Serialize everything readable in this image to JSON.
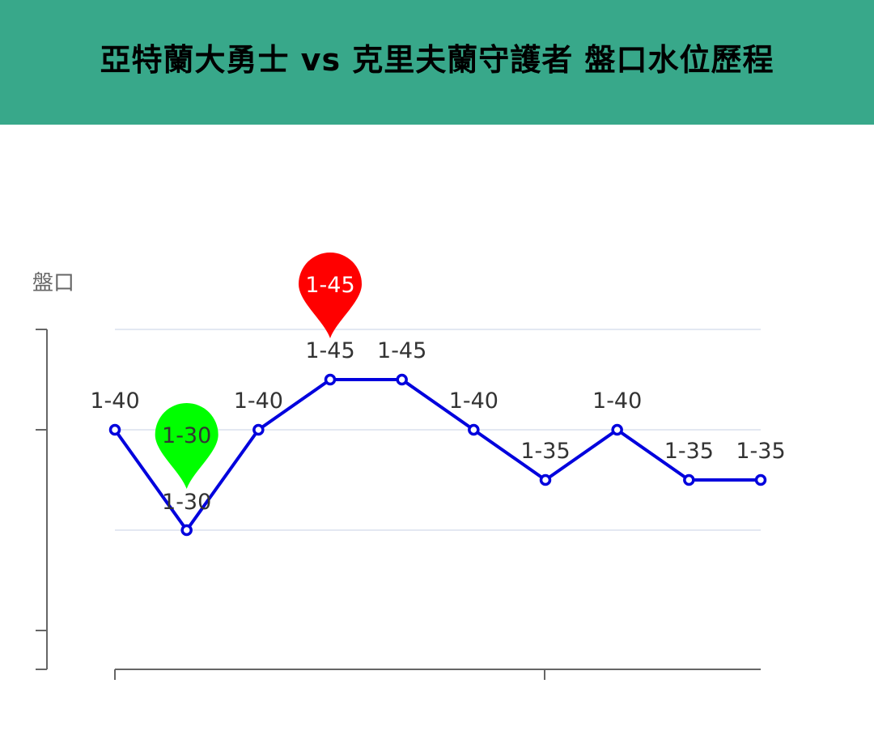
{
  "title": "亞特蘭大勇士 vs 克里夫蘭守護者 盤口水位歷程",
  "colors": {
    "header_bg": "#38a88a",
    "line": "#0000dd",
    "grid": "#e3e8f2",
    "axis": "#666666",
    "max_pin": "#ff0000",
    "min_pin": "#00ff00"
  },
  "chart_data": {
    "type": "line",
    "title": "",
    "xlabel": "",
    "ylabel": "盤口",
    "series": [
      {
        "labels": [
          "1-40",
          "1-30",
          "1-40",
          "1-45",
          "1-45",
          "1-40",
          "1-35",
          "1-40",
          "1-35",
          "1-35"
        ],
        "values": [
          40,
          30,
          40,
          45,
          45,
          40,
          35,
          40,
          35,
          35
        ]
      }
    ],
    "ylim": [
      20,
      50
    ],
    "grid": true,
    "markers": {
      "max": {
        "index": 3,
        "label": "1-45"
      },
      "min": {
        "index": 1,
        "label": "1-30"
      }
    }
  }
}
